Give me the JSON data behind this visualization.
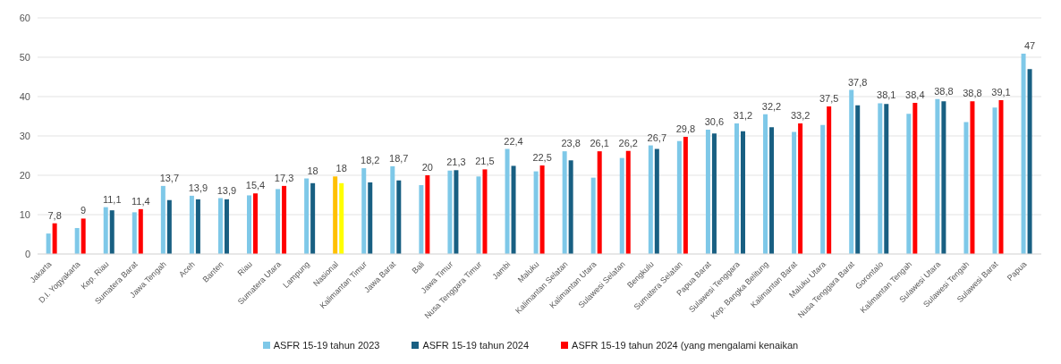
{
  "chart_data": {
    "type": "bar",
    "categories": [
      "Jakarta",
      "D.I. Yogyakarta",
      "Kep. Riau",
      "Sumatera Barat",
      "Jawa Tengah",
      "Aceh",
      "Banten",
      "Riau",
      "Sumatera Utara",
      "Lampung",
      "Nasional",
      "Kalimantan Timur",
      "Jawa Barat",
      "Bali",
      "Jawa Timur",
      "Nusa Tenggara Timur",
      "Jambi",
      "Maluku",
      "Kalimantan Selatan",
      "Kalimantan Utara",
      "Sulawesi Selatan",
      "Bengkulu",
      "Sumatera Selatan",
      "Papua Barat",
      "Sulawesi Tenggara",
      "Kep. Bangka Belitung",
      "Kalimantan Barat",
      "Maluku Utara",
      "Nusa Tenggara Barat",
      "Gorontalo",
      "Kalimantan Tengah",
      "Sulawesi Utara",
      "Sulawesi Tengah",
      "Sulawesi Barat",
      "Papua"
    ],
    "series": [
      {
        "name": "ASFR 15-19 tahun 2023",
        "color": "#7ec8e8",
        "values": [
          5.2,
          6.6,
          11.9,
          10.6,
          17.3,
          14.8,
          14.2,
          14.9,
          16.5,
          19.2,
          19.7,
          21.8,
          22.3,
          17.5,
          21.2,
          19.7,
          26.7,
          21.0,
          26.1,
          19.4,
          24.4,
          27.6,
          28.7,
          31.6,
          33.2,
          35.5,
          31.0,
          32.8,
          41.7,
          38.3,
          35.6,
          39.4,
          33.5,
          37.2,
          50.9
        ],
        "colors": [
          "#7ec8e8",
          "#7ec8e8",
          "#7ec8e8",
          "#7ec8e8",
          "#7ec8e8",
          "#7ec8e8",
          "#7ec8e8",
          "#7ec8e8",
          "#7ec8e8",
          "#7ec8e8",
          "#ffc000",
          "#7ec8e8",
          "#7ec8e8",
          "#7ec8e8",
          "#7ec8e8",
          "#7ec8e8",
          "#7ec8e8",
          "#7ec8e8",
          "#7ec8e8",
          "#7ec8e8",
          "#7ec8e8",
          "#7ec8e8",
          "#7ec8e8",
          "#7ec8e8",
          "#7ec8e8",
          "#7ec8e8",
          "#7ec8e8",
          "#7ec8e8",
          "#7ec8e8",
          "#7ec8e8",
          "#7ec8e8",
          "#7ec8e8",
          "#7ec8e8",
          "#7ec8e8",
          "#7ec8e8"
        ]
      },
      {
        "name": "ASFR 15-19 tahun 2024",
        "color": "#185f82",
        "values": [
          7.8,
          9,
          11.1,
          11.4,
          13.7,
          13.9,
          13.9,
          15.4,
          17.3,
          18,
          18,
          18.2,
          18.7,
          20,
          21.3,
          21.5,
          22.4,
          22.5,
          23.8,
          26.1,
          26.2,
          26.7,
          29.8,
          30.6,
          31.2,
          32.2,
          33.2,
          37.5,
          37.8,
          38.1,
          38.4,
          38.8,
          38.8,
          39.1,
          47
        ],
        "colors": [
          "#ff0000",
          "#ff0000",
          "#185f82",
          "#ff0000",
          "#185f82",
          "#185f82",
          "#185f82",
          "#ff0000",
          "#ff0000",
          "#185f82",
          "#ffff00",
          "#185f82",
          "#185f82",
          "#ff0000",
          "#185f82",
          "#ff0000",
          "#185f82",
          "#ff0000",
          "#185f82",
          "#ff0000",
          "#ff0000",
          "#185f82",
          "#ff0000",
          "#185f82",
          "#185f82",
          "#185f82",
          "#ff0000",
          "#ff0000",
          "#185f82",
          "#185f82",
          "#ff0000",
          "#185f82",
          "#ff0000",
          "#ff0000",
          "#185f82"
        ],
        "value_labels": [
          "7,8",
          "9",
          "11,1",
          "11,4",
          "13,7",
          "13,9",
          "13,9",
          "15,4",
          "17,3",
          "18",
          "18",
          "18,2",
          "18,7",
          "20",
          "21,3",
          "21,5",
          "22,4",
          "22,5",
          "23,8",
          "26,1",
          "26,2",
          "26,7",
          "29,8",
          "30,6",
          "31,2",
          "32,2",
          "33,2",
          "37,5",
          "37,8",
          "38,1",
          "38,4",
          "38,8",
          "38,8",
          "39,1",
          "47"
        ]
      },
      {
        "name": "ASFR 15-19 tahun 2024 (yang mengalami kenaikan",
        "color": "#ff0000",
        "values": [
          null,
          null,
          null,
          null,
          null,
          null,
          null,
          null,
          null,
          null,
          null,
          null,
          null,
          null,
          null,
          null,
          null,
          null,
          null,
          null,
          null,
          null,
          null,
          null,
          null,
          null,
          null,
          null,
          null,
          null,
          null,
          null,
          null,
          null,
          null
        ]
      }
    ],
    "ylim": [
      0,
      60
    ],
    "yticks": [
      0,
      10,
      20,
      30,
      40,
      50,
      60
    ],
    "grid": "y",
    "legend": "bottom"
  }
}
